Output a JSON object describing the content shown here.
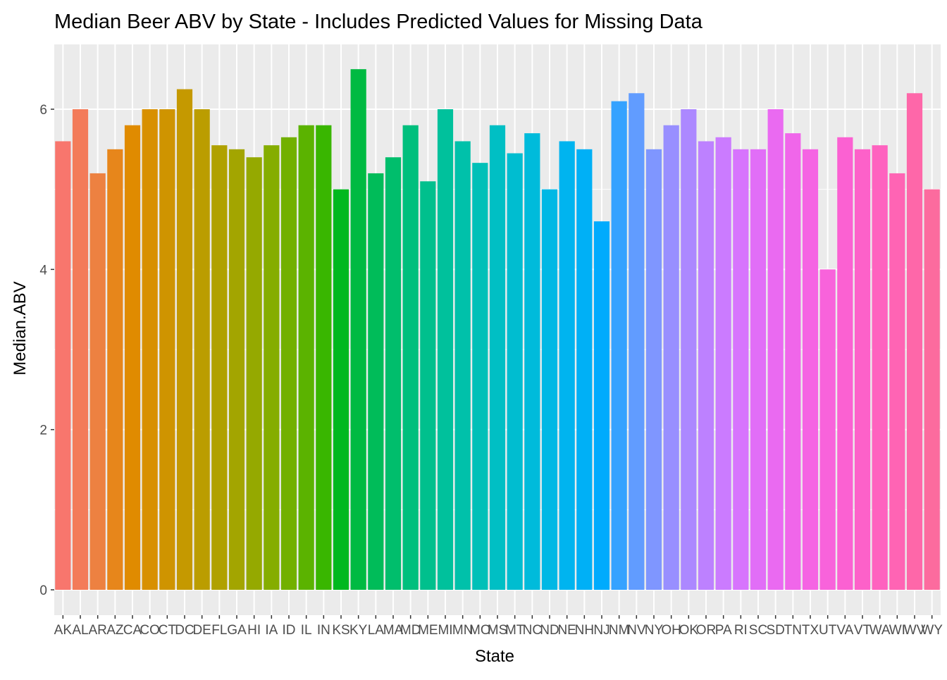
{
  "chart_data": {
    "type": "bar",
    "title": "Median Beer ABV by State - Includes Predicted Values for Missing Data",
    "xlabel": "State",
    "ylabel": "Median.ABV",
    "ylim": [
      0,
      6.5
    ],
    "y_ticks": [
      0,
      2,
      4,
      6
    ],
    "grid": true,
    "legend": "none",
    "panel_background": "#EBEBEB",
    "grid_color": "#FFFFFF",
    "categories": [
      "AK",
      "AL",
      "AR",
      "AZ",
      "CA",
      "CO",
      "CT",
      "DC",
      "DE",
      "FL",
      "GA",
      "HI",
      "IA",
      "ID",
      "IL",
      "IN",
      "KS",
      "KY",
      "LA",
      "MA",
      "MD",
      "ME",
      "MI",
      "MN",
      "MO",
      "MS",
      "MT",
      "NC",
      "ND",
      "NE",
      "NH",
      "NJ",
      "NM",
      "NV",
      "NY",
      "OH",
      "OK",
      "OR",
      "PA",
      "RI",
      "SC",
      "SD",
      "TN",
      "TX",
      "UT",
      "VA",
      "VT",
      "WA",
      "WI",
      "WV",
      "WY"
    ],
    "values": [
      5.6,
      6.0,
      5.2,
      5.5,
      5.8,
      6.0,
      6.0,
      6.25,
      6.0,
      5.55,
      5.5,
      5.4,
      5.55,
      5.65,
      5.8,
      5.8,
      5.0,
      6.5,
      5.2,
      5.4,
      5.8,
      5.1,
      6.0,
      5.6,
      5.33,
      5.8,
      5.45,
      5.7,
      5.0,
      5.6,
      5.5,
      4.6,
      6.1,
      6.2,
      5.5,
      5.8,
      6.0,
      5.6,
      5.65,
      5.5,
      5.5,
      6.0,
      5.7,
      5.5,
      4.0,
      5.65,
      5.5,
      5.55,
      5.2,
      6.2,
      5.0
    ],
    "colors": [
      "#F8766D",
      "#F37B59",
      "#ED8141",
      "#E7861B",
      "#E08B00",
      "#D89000",
      "#CF9400",
      "#C59900",
      "#BB9D00",
      "#B0A100",
      "#A3A500",
      "#95A900",
      "#85AD00",
      "#72B000",
      "#5BB300",
      "#39B600",
      "#00B81F",
      "#00BA42",
      "#00BC59",
      "#00BE6C",
      "#00BF7D",
      "#00C08D",
      "#00C19C",
      "#00C1AA",
      "#00C0B8",
      "#00BFC4",
      "#00BDD0",
      "#00BBDB",
      "#00B8E5",
      "#00B4EF",
      "#00B0F6",
      "#00ABFD",
      "#35A2FF",
      "#619CFF",
      "#7F96FF",
      "#988FFF",
      "#AC88FF",
      "#BD81FF",
      "#CB7BFF",
      "#D774FD",
      "#E16EF7",
      "#EA6AF1",
      "#F066EA",
      "#F564E3",
      "#F863DB",
      "#FB61D2",
      "#FD61C9",
      "#FE62BF",
      "#FF64B4",
      "#FE67A9",
      "#FC6B9E"
    ]
  }
}
